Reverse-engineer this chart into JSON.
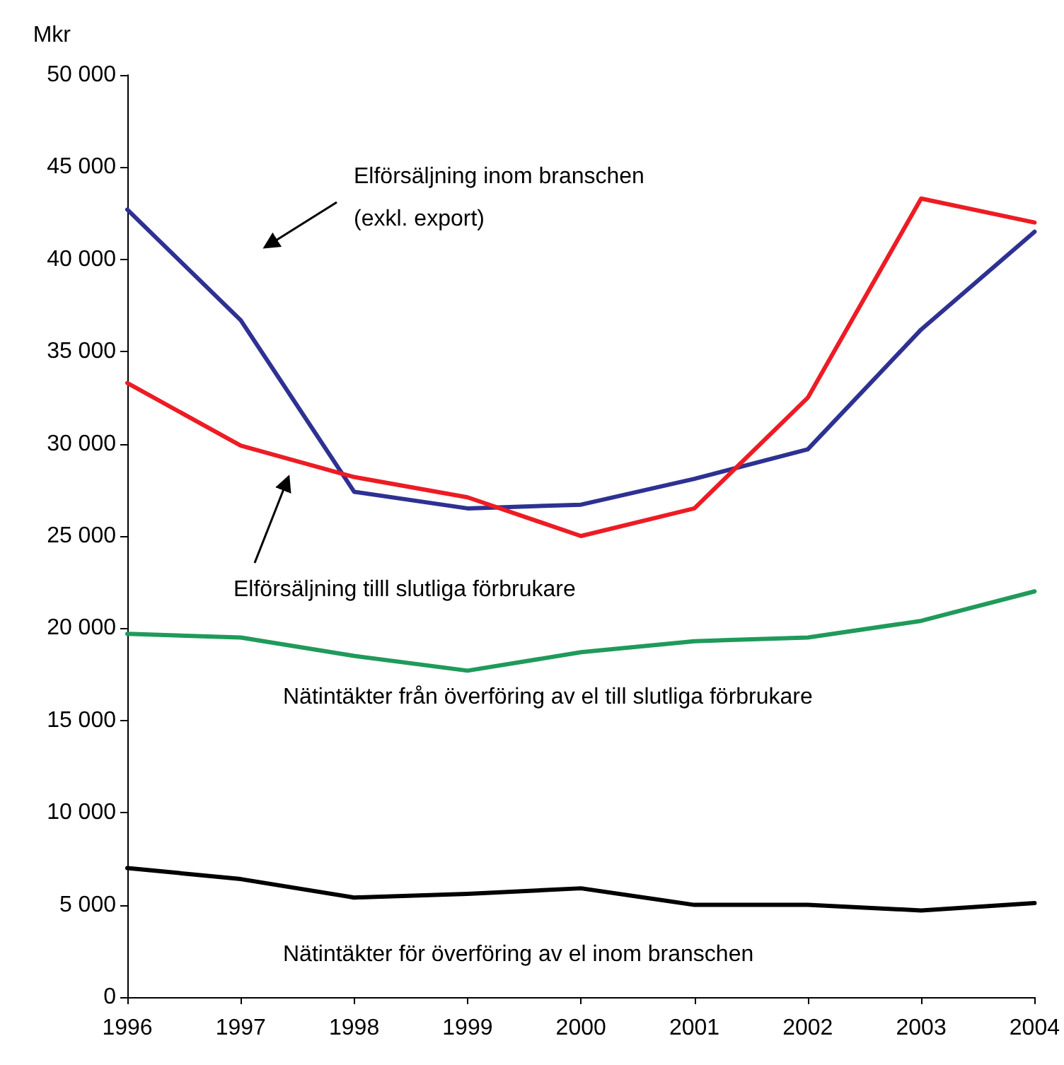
{
  "chart_data": {
    "type": "line",
    "ylabel": "Mkr",
    "legend": false,
    "grid": false,
    "marker": "none",
    "line_style": "solid",
    "x": [
      1996,
      1997,
      1998,
      1999,
      2000,
      2001,
      2002,
      2003,
      2004
    ],
    "xlim": [
      1996,
      2004
    ],
    "xticks": [
      1996,
      1997,
      1998,
      1999,
      2000,
      2001,
      2002,
      2003,
      2004
    ],
    "ylim": [
      0,
      50000
    ],
    "yticks": [
      {
        "value": 0,
        "label": "0"
      },
      {
        "value": 5000,
        "label": "5 000"
      },
      {
        "value": 10000,
        "label": "10 000"
      },
      {
        "value": 15000,
        "label": "15 000"
      },
      {
        "value": 20000,
        "label": "20 000"
      },
      {
        "value": 25000,
        "label": "25 000"
      },
      {
        "value": 30000,
        "label": "30 000"
      },
      {
        "value": 35000,
        "label": "35 000"
      },
      {
        "value": 40000,
        "label": "40 000"
      },
      {
        "value": 45000,
        "label": "45 000"
      },
      {
        "value": 50000,
        "label": "50 000"
      }
    ],
    "series": [
      {
        "name": "Elförsäljning inom branschen (exkl. export)",
        "color": "#2e3192",
        "values": [
          42700,
          36700,
          27400,
          26500,
          26700,
          28100,
          29700,
          36200,
          41500
        ]
      },
      {
        "name": "Elförsäljning tilll slutliga förbrukare",
        "color": "#ed1c24",
        "values": [
          33300,
          29900,
          28200,
          27100,
          25000,
          26500,
          32500,
          43300,
          42000
        ]
      },
      {
        "name": "Nätintäkter från överföring av el till slutliga förbrukare",
        "color": "#1f9a5a",
        "values": [
          19700,
          19500,
          18500,
          17700,
          18700,
          19300,
          19500,
          20400,
          22000
        ]
      },
      {
        "name": "Nätintäkter för överföring av el inom branschen",
        "color": "#000000",
        "values": [
          7000,
          6400,
          5400,
          5600,
          5900,
          5000,
          5000,
          4700,
          5100
        ]
      }
    ]
  }
}
